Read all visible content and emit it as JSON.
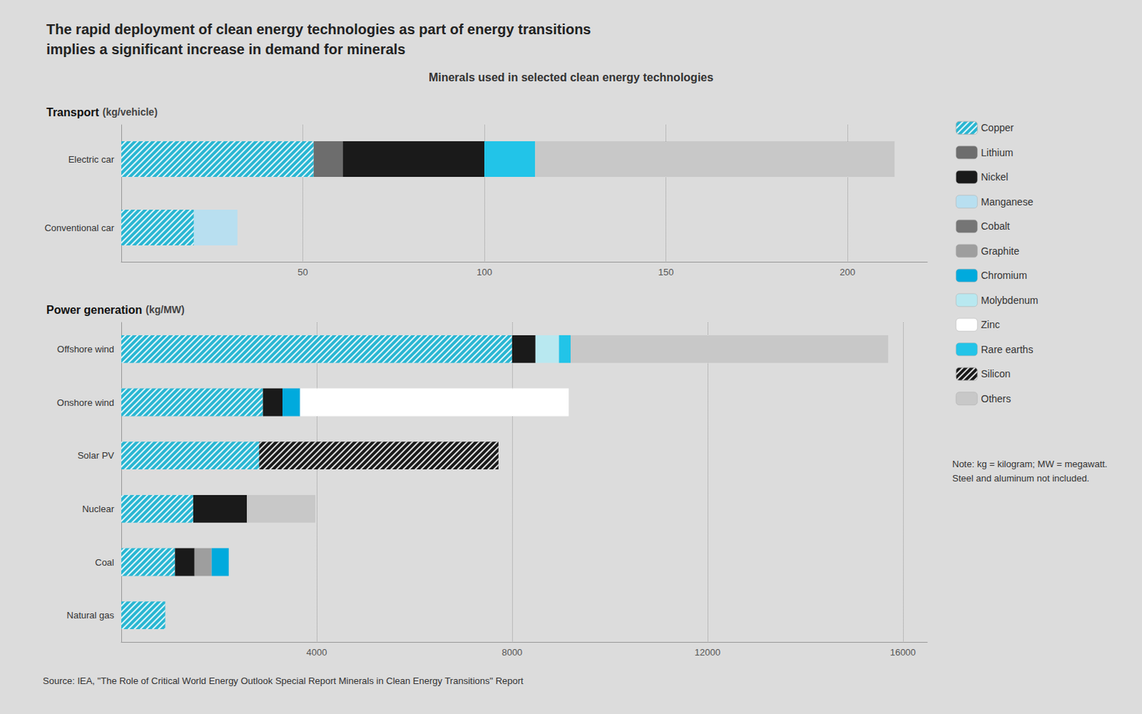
{
  "title": "The rapid deployment of clean energy technologies as part of energy transitions\nimplies a significant increase in demand for minerals",
  "subtitle": "Minerals used in selected clean energy technologies",
  "legend": "right",
  "annotations": [
    "Note: kg = kilogram; MW = megawatt. Steel and aluminum not included.",
    "Source: IEA, \"The Role of Critical World Energy Outlook Special Report Minerals in Clean Energy Transitions\" Report"
  ],
  "chart_data": [
    {
      "type": "bar",
      "orientation": "horizontal",
      "stacked": true,
      "grid": true,
      "title": "Transport",
      "xlabel": "(kg/vehicle)",
      "categories": [
        "Electric car",
        "Conventional car"
      ],
      "xlim": [
        0,
        222
      ],
      "xticks": [
        50,
        100,
        150,
        200
      ],
      "series": [
        {
          "name": "Copper",
          "color": "#29b6d2",
          "marker": "hatch",
          "values": [
            53,
            20
          ]
        },
        {
          "name": "Lithium",
          "color": "#6d6d6d",
          "values": [
            8,
            0
          ]
        },
        {
          "name": "Nickel",
          "color": "#1a1a1a",
          "values": [
            39,
            0
          ]
        },
        {
          "name": "Manganese",
          "color": "#b8dff0",
          "values": [
            0,
            12
          ]
        },
        {
          "name": "Cobalt",
          "color": "#757575",
          "values": [
            0,
            0
          ]
        },
        {
          "name": "Graphite",
          "color": "#9e9e9e",
          "values": [
            0,
            0
          ]
        },
        {
          "name": "Chromium",
          "color": "#00aadd",
          "values": [
            0,
            0
          ]
        },
        {
          "name": "Molybdenum",
          "color": "#b8e8f0",
          "values": [
            0,
            0
          ]
        },
        {
          "name": "Zinc",
          "color": "#ffffff",
          "values": [
            0,
            0
          ]
        },
        {
          "name": "Rare earths",
          "color": "#22c4e8",
          "values": [
            14,
            0
          ]
        },
        {
          "name": "Silicon",
          "color": "#1a1a1a",
          "marker": "hatch",
          "values": [
            0,
            0
          ]
        },
        {
          "name": "Others",
          "color": "#c8c8c8",
          "values": [
            99,
            0
          ]
        }
      ]
    },
    {
      "type": "bar",
      "orientation": "horizontal",
      "stacked": true,
      "grid": true,
      "title": "Power generation",
      "xlabel": "(kg/MW)",
      "categories": [
        "Offshore wind",
        "Onshore wind",
        "Solar PV",
        "Nuclear",
        "Coal",
        "Natural gas"
      ],
      "xlim": [
        0,
        16500
      ],
      "xticks": [
        4000,
        8000,
        12000,
        16000
      ],
      "series": [
        {
          "name": "Copper",
          "color": "#29b6d2",
          "marker": "hatch",
          "values": [
            8000,
            2900,
            2822,
            1473,
            1100,
            900
          ]
        },
        {
          "name": "Lithium",
          "color": "#6d6d6d",
          "values": [
            0,
            0,
            0,
            0,
            0,
            0
          ]
        },
        {
          "name": "Nickel",
          "color": "#1a1a1a",
          "values": [
            480,
            400,
            0,
            1100,
            400,
            0
          ]
        },
        {
          "name": "Manganese",
          "color": "#b8dff0",
          "values": [
            0,
            0,
            0,
            0,
            0,
            0
          ]
        },
        {
          "name": "Cobalt",
          "color": "#757575",
          "values": [
            0,
            0,
            0,
            0,
            0,
            0
          ]
        },
        {
          "name": "Graphite",
          "color": "#9e9e9e",
          "values": [
            0,
            0,
            0,
            0,
            350,
            0
          ]
        },
        {
          "name": "Chromium",
          "color": "#00aadd",
          "values": [
            0,
            360,
            0,
            0,
            350,
            0
          ]
        },
        {
          "name": "Molybdenum",
          "color": "#b8e8f0",
          "values": [
            480,
            0,
            0,
            0,
            0,
            0
          ]
        },
        {
          "name": "Zinc",
          "color": "#ffffff",
          "values": [
            0,
            5500,
            0,
            0,
            0,
            0
          ]
        },
        {
          "name": "Rare earths",
          "color": "#22c4e8",
          "values": [
            239,
            0,
            0,
            0,
            0,
            0
          ]
        },
        {
          "name": "Silicon",
          "color": "#1a1a1a",
          "marker": "hatch",
          "values": [
            0,
            0,
            4900,
            0,
            0,
            0
          ]
        },
        {
          "name": "Others",
          "color": "#c8c8c8",
          "values": [
            6500,
            0,
            0,
            1400,
            0,
            0
          ]
        }
      ]
    }
  ]
}
